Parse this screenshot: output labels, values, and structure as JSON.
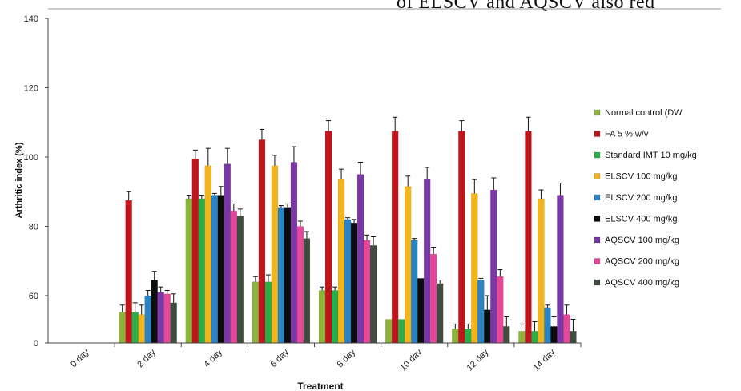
{
  "header_text": "of ELSCV and AQSCV also red",
  "chart_data": {
    "type": "bar",
    "xlabel": "Treatment",
    "ylabel": "Arthritic index (%)",
    "y_ticks": [
      0,
      60,
      80,
      100,
      120,
      140
    ],
    "categories": [
      "0 day",
      "2 day",
      "4 day",
      "6 day",
      "8 day",
      "10 day",
      "12 day",
      "14 day"
    ],
    "legend_placement": "right",
    "grid": false,
    "series": [
      {
        "name": "Normal control (DW",
        "color": "#8db33a",
        "values": [
          0,
          56.5,
          88,
          64,
          61.5,
          55,
          53,
          52.5
        ],
        "errors": [
          0,
          1.5,
          1,
          1.5,
          1,
          0,
          1,
          1.5
        ]
      },
      {
        "name": "FA 5 % w/v",
        "color": "#c0161b",
        "values": [
          0,
          87.5,
          99.5,
          105,
          107.5,
          107.5,
          107.5,
          107.5
        ],
        "errors": [
          0,
          2.5,
          2.5,
          3,
          3,
          4,
          3,
          4
        ]
      },
      {
        "name": "Standard IMT 10 mg/kg",
        "color": "#2aae4a",
        "values": [
          0,
          56.5,
          88,
          64,
          61.5,
          55,
          53,
          52.5
        ],
        "errors": [
          0,
          2,
          1,
          2,
          1,
          0,
          1,
          2
        ]
      },
      {
        "name": "ELSCV 100 mg/kg",
        "color": "#f2b51c",
        "values": [
          0,
          56,
          97.5,
          97.5,
          93.5,
          91.5,
          89.5,
          88
        ],
        "errors": [
          0,
          2,
          5,
          3,
          3,
          3,
          4,
          2.5
        ]
      },
      {
        "name": "ELSCV 200 mg/kg",
        "color": "#2a84c4",
        "values": [
          0,
          60,
          89,
          85.5,
          82,
          76,
          64.5,
          57.5
        ],
        "errors": [
          0,
          1.5,
          0.5,
          0.5,
          0.5,
          0.5,
          0.5,
          0.5
        ]
      },
      {
        "name": "ELSCV 400 mg/kg",
        "color": "#0c0c0c",
        "values": [
          0,
          64.5,
          89,
          85.5,
          81,
          65,
          57,
          53.5
        ],
        "errors": [
          0,
          2.5,
          2.5,
          1,
          1,
          0,
          3,
          2
        ]
      },
      {
        "name": "AQSCV 100 mg/kg",
        "color": "#7a38a4",
        "values": [
          0,
          61,
          98,
          98.5,
          95,
          93.5,
          90.5,
          89
        ],
        "errors": [
          0,
          1.5,
          4.5,
          4.5,
          3.5,
          3.5,
          3.5,
          3.5
        ]
      },
      {
        "name": "AQSCV 200 mg/kg",
        "color": "#e7479a",
        "values": [
          0,
          60.5,
          84.5,
          80,
          76,
          72,
          65.5,
          56
        ],
        "errors": [
          0,
          1,
          2,
          1.5,
          1.5,
          2,
          2,
          2
        ]
      },
      {
        "name": "AQSCV 400 mg/kg",
        "color": "#3f4d3f",
        "values": [
          0,
          58.5,
          83,
          76.5,
          74.5,
          63.5,
          53.5,
          52.5
        ],
        "errors": [
          0,
          2,
          2,
          2,
          2.5,
          1,
          2,
          2.5
        ]
      }
    ]
  }
}
